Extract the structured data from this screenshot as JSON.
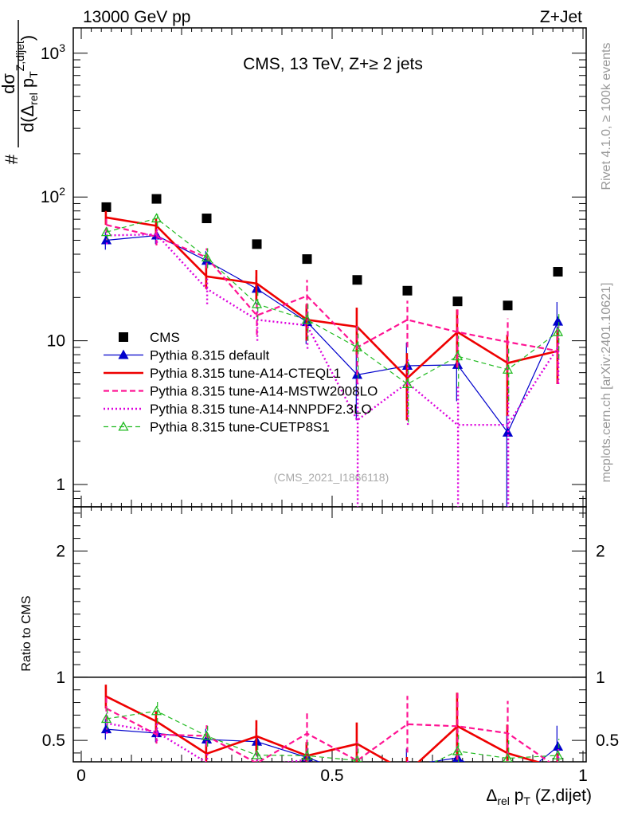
{
  "header": {
    "left": "13000 GeV pp",
    "right": "Z+Jet",
    "plot_title": "CMS, 13 TeV, Z+≥ 2 jets",
    "analysis_id": "(CMS_2021_I1866118)",
    "side_top": "Rivet 4.1.0, ≥ 100k events",
    "side_bottom": "mcplots.cern.ch [arXiv:2401.10621]"
  },
  "chart_data": {
    "type": "scatter",
    "title": "CMS, 13 TeV, Z+≥ 2 jets",
    "xlabel": "Δrel pT (Z,dijet)",
    "ylabel": "# dσ / d(Δrel pT Z,dijet)",
    "ratio_ylabel": "Ratio to CMS",
    "xlim": [
      0,
      1
    ],
    "ylim": [
      0.7,
      1500
    ],
    "yscale": "log",
    "ratio_ylim": [
      0.33,
      2.35
    ],
    "x_ticks": [
      0,
      0.5,
      1
    ],
    "x_tick_labels": [
      "0",
      "0.5",
      "1"
    ],
    "y_ticks": [
      1,
      10,
      100,
      1000
    ],
    "y_tick_labels": [
      "1",
      "10",
      "10²",
      "10³"
    ],
    "ratio_ticks": [
      0.5,
      1,
      2
    ],
    "ratio_tick_labels": [
      "0.5",
      "1",
      "2"
    ],
    "x": [
      0.05,
      0.15,
      0.25,
      0.35,
      0.45,
      0.55,
      0.65,
      0.75,
      0.85,
      0.95
    ],
    "series": [
      {
        "name": "CMS",
        "color": "#000000",
        "style": "data",
        "values": [
          85,
          97,
          71,
          47,
          37,
          26.5,
          22.3,
          18.8,
          17.6,
          30.2
        ],
        "errors": [
          0,
          0,
          0,
          0,
          0,
          0,
          0,
          0,
          0,
          0
        ]
      },
      {
        "name": "Pythia 8.315 default",
        "color": "#0000cc",
        "style": "solid-thin",
        "marker": "triangle",
        "values": [
          50,
          54,
          36,
          23,
          13.5,
          5.8,
          6.7,
          6.8,
          2.3,
          13.6
        ],
        "errors": [
          7,
          7,
          6,
          5,
          4,
          3,
          3,
          3,
          2,
          5
        ]
      },
      {
        "name": "Pythia 8.315 tune-A14-CTEQL1",
        "color": "#ee0000",
        "style": "solid-thick",
        "values": [
          72,
          63,
          28,
          25,
          14,
          12.5,
          5.5,
          11.5,
          7.0,
          8.5
        ],
        "errors": [
          8,
          8,
          5,
          6,
          4,
          4.5,
          2.7,
          5,
          4,
          3.5
        ]
      },
      {
        "name": "Pythia 8.315 tune-A14-MSTW2008LO",
        "color": "#ff1493",
        "style": "dashed",
        "values": [
          64,
          53,
          38,
          15,
          20.5,
          9,
          14,
          11.5,
          9.8,
          8.5
        ],
        "errors": [
          8,
          7,
          6,
          4,
          6,
          4,
          5,
          5,
          4.5,
          3.5
        ]
      },
      {
        "name": "Pythia 8.315 tune-A14-NNPDF2.3LO",
        "color": "#dd00dd",
        "style": "dotted",
        "values": [
          54,
          55,
          23,
          14,
          12.8,
          2.8,
          5.1,
          2.6,
          2.6,
          9
        ],
        "errors": [
          7,
          7,
          5,
          4,
          4,
          2.4,
          2.5,
          2.2,
          2.2,
          4
        ]
      },
      {
        "name": "Pythia 8.315 tune-CUETP8S1",
        "color": "#22bb22",
        "style": "dashed-thin",
        "marker": "open-triangle",
        "values": [
          57,
          71,
          38,
          18,
          14,
          9,
          5,
          7.8,
          6.3,
          11.5
        ],
        "errors": [
          7,
          9,
          6,
          4,
          4,
          3.5,
          2.3,
          3,
          2.5,
          4
        ]
      }
    ],
    "legend_position": "center-left"
  }
}
